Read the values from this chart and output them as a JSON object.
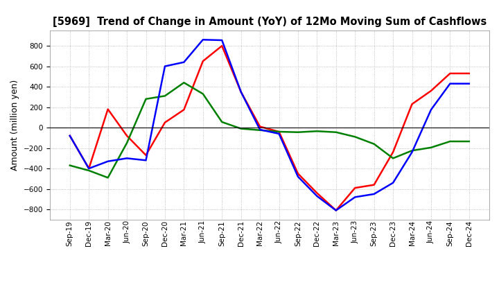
{
  "title": "[5969]  Trend of Change in Amount (YoY) of 12Mo Moving Sum of Cashflows",
  "ylabel": "Amount (million yen)",
  "ylim": [
    -900,
    950
  ],
  "yticks": [
    -800,
    -600,
    -400,
    -200,
    0,
    200,
    400,
    600,
    800
  ],
  "x_labels": [
    "Sep-19",
    "Dec-19",
    "Mar-20",
    "Jun-20",
    "Sep-20",
    "Dec-20",
    "Mar-21",
    "Jun-21",
    "Sep-21",
    "Dec-21",
    "Mar-22",
    "Jun-22",
    "Sep-22",
    "Dec-22",
    "Mar-23",
    "Jun-23",
    "Sep-23",
    "Dec-23",
    "Mar-24",
    "Jun-24",
    "Sep-24",
    "Dec-24"
  ],
  "operating": [
    -80,
    -400,
    180,
    -80,
    -270,
    50,
    175,
    650,
    800,
    350,
    10,
    -40,
    -450,
    -640,
    -810,
    -590,
    -560,
    -240,
    230,
    360,
    530,
    530
  ],
  "investing": [
    -370,
    -420,
    -490,
    -150,
    280,
    310,
    440,
    330,
    55,
    -10,
    -25,
    -40,
    -45,
    -35,
    -45,
    -90,
    -160,
    -300,
    -225,
    -195,
    -135,
    -135
  ],
  "free": [
    -80,
    -400,
    -330,
    -300,
    -320,
    600,
    640,
    860,
    855,
    350,
    -20,
    -60,
    -480,
    -670,
    -810,
    -680,
    -650,
    -540,
    -240,
    175,
    430,
    430
  ],
  "operating_color": "#ff0000",
  "investing_color": "#008000",
  "free_color": "#0000ff",
  "bg_color": "#ffffff",
  "grid_color": "#b0b0b0",
  "title_color": "#000000",
  "title_fontsize": 10.5,
  "ylabel_fontsize": 9,
  "tick_fontsize": 7.5,
  "legend_fontsize": 9,
  "linewidth": 1.8
}
